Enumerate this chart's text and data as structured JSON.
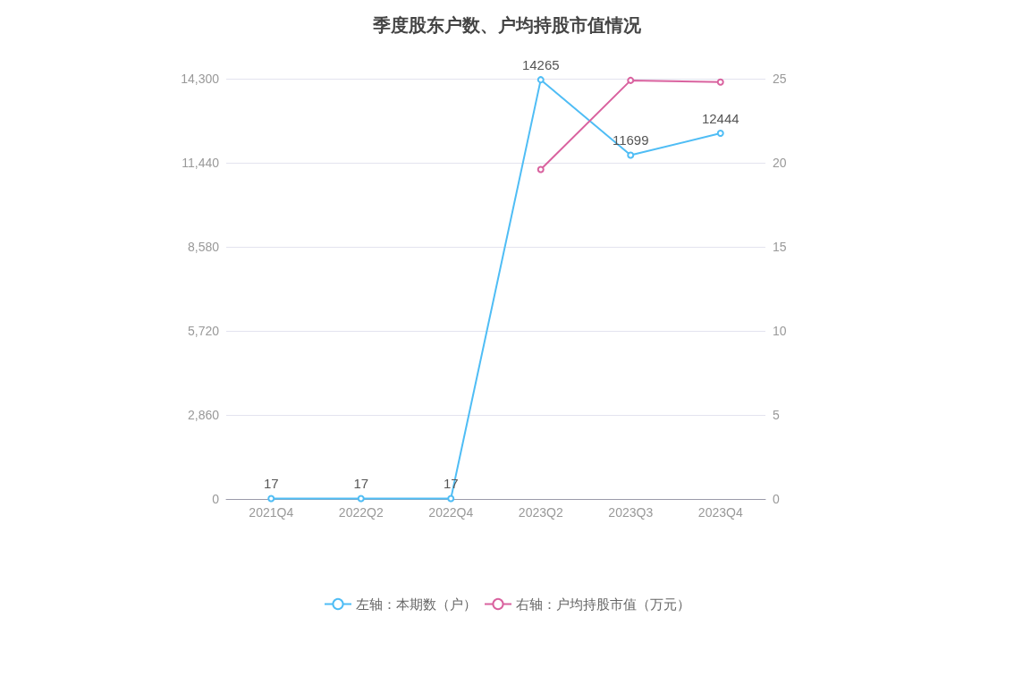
{
  "chart_data": {
    "type": "line",
    "title": "季度股东户数、户均持股市值情况",
    "categories": [
      "2021Q4",
      "2022Q2",
      "2022Q4",
      "2023Q2",
      "2023Q3",
      "2023Q4"
    ],
    "series": [
      {
        "name": "左轴：本期数（户）",
        "color": "#4fbdf5",
        "values": [
          17,
          17,
          17,
          14265,
          11699,
          12444
        ],
        "value_labels": [
          "17",
          "17",
          "17",
          "14265",
          "11699",
          "12444"
        ]
      },
      {
        "name": "右轴：户均持股市值（万元）",
        "color": "#d9629f",
        "axis": "y2",
        "values": [
          null,
          null,
          null,
          19.6,
          24.9,
          24.8
        ]
      }
    ],
    "ylim": [
      0,
      14300
    ],
    "yticks": [
      0,
      {
        "value": 2860,
        "label": "2,860"
      },
      {
        "value": 5720,
        "label": "5,720"
      },
      {
        "value": 8580,
        "label": "8,580"
      },
      {
        "value": 11440,
        "label": "11,440"
      },
      {
        "value": 14300,
        "label": "14,300"
      }
    ],
    "y2lim": [
      0,
      25
    ],
    "y2ticks": [
      0,
      5,
      10,
      15,
      20,
      25
    ],
    "grid": "y",
    "legend": "bottom",
    "marker": "circle",
    "line_style": "solid"
  }
}
